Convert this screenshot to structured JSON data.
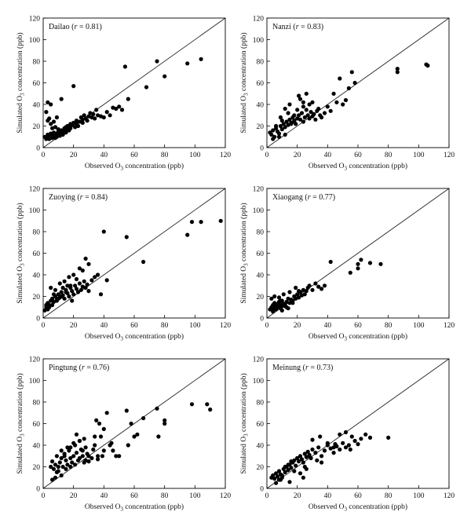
{
  "chart_data": [
    {
      "type": "scatter",
      "title": "Dailao",
      "r_label": "r",
      "r_value": "= 0.81",
      "xlabel": "Observed O3 concentration (ppb)",
      "xlabel_main": "Observed O",
      "xlabel_sub": "3",
      "xlabel_rest": " concentration (ppb)",
      "ylabel_main": "Simulated O",
      "ylabel_sub": "3",
      "ylabel_rest": " concentration (ppb)",
      "xlim": [
        0,
        120
      ],
      "ylim": [
        0,
        120
      ],
      "xticks": [
        0,
        20,
        40,
        60,
        80,
        100,
        120
      ],
      "yticks": [
        0,
        20,
        40,
        60,
        80,
        100,
        120
      ],
      "reference_line": "1:1",
      "grid": false,
      "x": [
        1,
        2,
        3,
        3,
        4,
        4,
        5,
        5,
        6,
        6,
        7,
        7,
        8,
        8,
        9,
        9,
        10,
        10,
        11,
        11,
        12,
        12,
        13,
        14,
        14,
        15,
        15,
        16,
        17,
        17,
        18,
        18,
        19,
        20,
        21,
        22,
        22,
        23,
        24,
        25,
        26,
        26,
        27,
        28,
        29,
        30,
        31,
        32,
        33,
        34,
        35,
        36,
        38,
        40,
        42,
        44,
        46,
        48,
        50,
        52,
        54,
        56,
        68,
        75,
        80,
        95,
        104,
        2,
        3,
        5,
        8,
        12,
        16,
        20,
        4,
        6,
        9,
        3,
        5,
        7,
        10,
        13
      ],
      "y": [
        10,
        8,
        12,
        9,
        11,
        8,
        10,
        13,
        9,
        12,
        10,
        14,
        11,
        9,
        13,
        10,
        12,
        15,
        14,
        11,
        16,
        13,
        12,
        18,
        15,
        14,
        19,
        17,
        20,
        16,
        22,
        18,
        21,
        23,
        19,
        25,
        22,
        20,
        24,
        28,
        23,
        26,
        30,
        27,
        25,
        29,
        32,
        28,
        31,
        27,
        35,
        30,
        29,
        28,
        33,
        30,
        37,
        36,
        38,
        35,
        75,
        45,
        56,
        80,
        66,
        78,
        82,
        33,
        42,
        40,
        19,
        45,
        20,
        57,
        27,
        18,
        28,
        25,
        22,
        24,
        17,
        15
      ]
    },
    {
      "type": "scatter",
      "title": "Nanzi",
      "r_label": "r",
      "r_value": "= 0.83",
      "xlabel": "Observed O3 concentration (ppb)",
      "xlabel_main": "Observed O",
      "xlabel_sub": "3",
      "xlabel_rest": " concentration (ppb)",
      "ylabel_main": "Simulated O",
      "ylabel_sub": "3",
      "ylabel_rest": " concentration (ppb)",
      "xlim": [
        0,
        120
      ],
      "ylim": [
        0,
        120
      ],
      "xticks": [
        0,
        20,
        40,
        60,
        80,
        100,
        120
      ],
      "yticks": [
        0,
        20,
        40,
        60,
        80,
        100,
        120
      ],
      "reference_line": "1:1",
      "grid": false,
      "x": [
        2,
        3,
        4,
        5,
        6,
        7,
        8,
        9,
        10,
        11,
        12,
        13,
        14,
        15,
        16,
        17,
        18,
        19,
        20,
        21,
        22,
        23,
        24,
        25,
        26,
        27,
        28,
        29,
        30,
        31,
        32,
        33,
        34,
        35,
        36,
        38,
        40,
        42,
        44,
        46,
        48,
        50,
        52,
        54,
        56,
        58,
        86,
        86,
        105,
        106,
        4,
        8,
        12,
        16,
        20,
        24,
        28,
        10,
        14,
        18,
        22,
        26,
        30,
        6,
        9,
        12,
        15,
        18,
        21,
        24
      ],
      "y": [
        14,
        12,
        16,
        10,
        18,
        15,
        13,
        20,
        17,
        22,
        19,
        24,
        21,
        26,
        23,
        28,
        25,
        22,
        27,
        30,
        26,
        32,
        24,
        28,
        35,
        30,
        27,
        33,
        29,
        31,
        26,
        34,
        36,
        30,
        28,
        32,
        38,
        34,
        50,
        42,
        64,
        40,
        44,
        55,
        70,
        60,
        70,
        73,
        77,
        76,
        8,
        10,
        12,
        22,
        35,
        38,
        40,
        25,
        32,
        30,
        45,
        50,
        42,
        20,
        28,
        36,
        40,
        24,
        48,
        42
      ]
    },
    {
      "type": "scatter",
      "title": "Zuoying",
      "r_label": "r",
      "r_value": "= 0.84",
      "xlabel": "Observed O3 concentration (ppb)",
      "xlabel_main": "Observed O",
      "xlabel_sub": "3",
      "xlabel_rest": " concentration (ppb)",
      "ylabel_main": "Simulated O",
      "ylabel_sub": "3",
      "ylabel_rest": " concentration (ppb)",
      "xlim": [
        0,
        120
      ],
      "ylim": [
        0,
        120
      ],
      "xticks": [
        0,
        20,
        40,
        60,
        80,
        100,
        120
      ],
      "yticks": [
        0,
        20,
        40,
        60,
        80,
        100,
        120
      ],
      "reference_line": "1:1",
      "grid": false,
      "x": [
        1,
        2,
        3,
        4,
        5,
        6,
        7,
        8,
        9,
        10,
        11,
        12,
        13,
        14,
        15,
        16,
        17,
        18,
        19,
        20,
        21,
        22,
        23,
        24,
        25,
        26,
        27,
        28,
        29,
        30,
        32,
        34,
        36,
        38,
        40,
        42,
        55,
        66,
        95,
        98,
        104,
        117,
        3,
        6,
        9,
        12,
        15,
        18,
        22,
        26,
        30,
        5,
        8,
        11,
        14,
        17,
        20,
        24,
        28,
        2,
        4,
        7,
        10,
        13,
        16,
        19
      ],
      "y": [
        7,
        10,
        14,
        12,
        16,
        18,
        15,
        20,
        17,
        22,
        19,
        24,
        21,
        18,
        26,
        23,
        20,
        28,
        25,
        22,
        30,
        27,
        24,
        32,
        26,
        29,
        34,
        28,
        31,
        25,
        35,
        38,
        40,
        22,
        80,
        35,
        75,
        52,
        77,
        89,
        89,
        90,
        8,
        12,
        16,
        20,
        24,
        30,
        36,
        44,
        50,
        28,
        26,
        32,
        34,
        38,
        40,
        46,
        55,
        12,
        10,
        22,
        18,
        28,
        30,
        16
      ]
    },
    {
      "type": "scatter",
      "title": "Xiaogang",
      "r_label": "r",
      "r_value": "= 0.77",
      "xlabel": "Observed O3 concentration (ppb)",
      "xlabel_main": "Observed O",
      "xlabel_sub": "3",
      "xlabel_rest": " concentration (ppb)",
      "ylabel_main": "Simulated O",
      "ylabel_sub": "3",
      "ylabel_rest": " concentration (ppb)",
      "xlim": [
        0,
        120
      ],
      "ylim": [
        0,
        120
      ],
      "xticks": [
        0,
        20,
        40,
        60,
        80,
        100,
        120
      ],
      "yticks": [
        0,
        20,
        40,
        60,
        80,
        100,
        120
      ],
      "reference_line": "1:1",
      "grid": false,
      "x": [
        2,
        3,
        4,
        4,
        5,
        5,
        6,
        6,
        7,
        7,
        8,
        8,
        9,
        9,
        10,
        10,
        11,
        12,
        13,
        14,
        15,
        16,
        17,
        18,
        19,
        20,
        21,
        22,
        23,
        24,
        25,
        26,
        27,
        28,
        30,
        32,
        34,
        36,
        38,
        42,
        55,
        60,
        60,
        62,
        68,
        75,
        3,
        5,
        7,
        9,
        11,
        13,
        15,
        17,
        19,
        21,
        4,
        6,
        8,
        10,
        12,
        14
      ],
      "y": [
        8,
        10,
        7,
        12,
        9,
        14,
        11,
        8,
        13,
        10,
        15,
        12,
        9,
        14,
        11,
        16,
        13,
        12,
        15,
        18,
        14,
        17,
        16,
        20,
        18,
        22,
        19,
        24,
        21,
        26,
        22,
        25,
        28,
        30,
        26,
        32,
        29,
        27,
        30,
        52,
        42,
        50,
        46,
        54,
        51,
        50,
        18,
        20,
        12,
        16,
        22,
        10,
        24,
        14,
        28,
        25,
        6,
        8,
        19,
        7,
        11,
        9
      ]
    },
    {
      "type": "scatter",
      "title": "Pingtung",
      "r_label": "r",
      "r_value": "= 0.76",
      "xlabel": "Observed O3 concentration (ppb)",
      "xlabel_main": "Observed O",
      "xlabel_sub": "3",
      "xlabel_rest": " concentration (ppb)",
      "ylabel_main": "Simulated O",
      "ylabel_sub": "3",
      "ylabel_rest": " concentration (ppb)",
      "xlim": [
        0,
        120
      ],
      "ylim": [
        0,
        120
      ],
      "xticks": [
        0,
        20,
        40,
        60,
        80,
        100,
        120
      ],
      "yticks": [
        0,
        20,
        40,
        60,
        80,
        100,
        120
      ],
      "reference_line": "1:1",
      "grid": false,
      "x": [
        5,
        6,
        7,
        8,
        9,
        10,
        11,
        12,
        13,
        14,
        15,
        16,
        17,
        18,
        19,
        20,
        21,
        22,
        23,
        24,
        25,
        26,
        27,
        28,
        29,
        30,
        32,
        34,
        35,
        36,
        38,
        40,
        42,
        44,
        46,
        48,
        55,
        58,
        60,
        62,
        66,
        75,
        76,
        80,
        80,
        98,
        108,
        110,
        6,
        9,
        12,
        15,
        18,
        21,
        24,
        27,
        30,
        33,
        36,
        39,
        8,
        10,
        14,
        16,
        20,
        22,
        26,
        28,
        34,
        37,
        40,
        45,
        50,
        56,
        12,
        18,
        24
      ],
      "y": [
        20,
        25,
        18,
        22,
        30,
        16,
        24,
        28,
        20,
        32,
        26,
        22,
        35,
        28,
        24,
        30,
        40,
        33,
        26,
        44,
        36,
        30,
        46,
        38,
        32,
        25,
        28,
        40,
        63,
        30,
        48,
        35,
        70,
        40,
        35,
        30,
        72,
        60,
        48,
        50,
        65,
        74,
        48,
        60,
        63,
        78,
        78,
        73,
        8,
        15,
        12,
        18,
        20,
        22,
        28,
        24,
        30,
        36,
        27,
        30,
        10,
        20,
        30,
        38,
        42,
        50,
        35,
        26,
        48,
        60,
        55,
        42,
        30,
        40,
        35,
        38,
        44
      ]
    },
    {
      "type": "scatter",
      "title": "Meinung",
      "r_label": "r",
      "r_value": "= 0.73",
      "xlabel": "Observed O3 concentration (ppb)",
      "xlabel_main": "Observed O",
      "xlabel_sub": "3",
      "xlabel_rest": " concentration (ppb)",
      "ylabel_main": "Simulated O",
      "ylabel_sub": "3",
      "ylabel_rest": " concentration (ppb)",
      "xlim": [
        0,
        120
      ],
      "ylim": [
        0,
        120
      ],
      "xticks": [
        0,
        20,
        40,
        60,
        80,
        100,
        120
      ],
      "yticks": [
        0,
        20,
        40,
        60,
        80,
        100,
        120
      ],
      "reference_line": "1:1",
      "grid": false,
      "x": [
        3,
        4,
        5,
        6,
        7,
        8,
        9,
        10,
        11,
        12,
        13,
        14,
        15,
        16,
        17,
        18,
        19,
        20,
        21,
        22,
        23,
        24,
        25,
        26,
        27,
        28,
        29,
        30,
        32,
        34,
        36,
        38,
        40,
        42,
        44,
        46,
        48,
        50,
        52,
        54,
        56,
        58,
        60,
        62,
        65,
        68,
        80,
        6,
        8,
        10,
        12,
        14,
        16,
        18,
        20,
        22,
        24,
        26,
        28,
        30,
        33,
        36,
        40,
        44,
        48,
        52,
        55,
        9,
        15,
        25,
        35,
        45
      ],
      "y": [
        10,
        12,
        9,
        14,
        11,
        16,
        13,
        10,
        18,
        15,
        20,
        17,
        22,
        19,
        24,
        26,
        21,
        28,
        25,
        30,
        27,
        24,
        32,
        29,
        34,
        31,
        28,
        36,
        33,
        38,
        30,
        35,
        40,
        37,
        33,
        39,
        36,
        42,
        38,
        40,
        48,
        44,
        41,
        46,
        50,
        47,
        47,
        5,
        8,
        12,
        20,
        22,
        25,
        16,
        28,
        14,
        10,
        18,
        30,
        45,
        26,
        24,
        42,
        38,
        50,
        52,
        36,
        8,
        6,
        20,
        48,
        41
      ]
    }
  ]
}
